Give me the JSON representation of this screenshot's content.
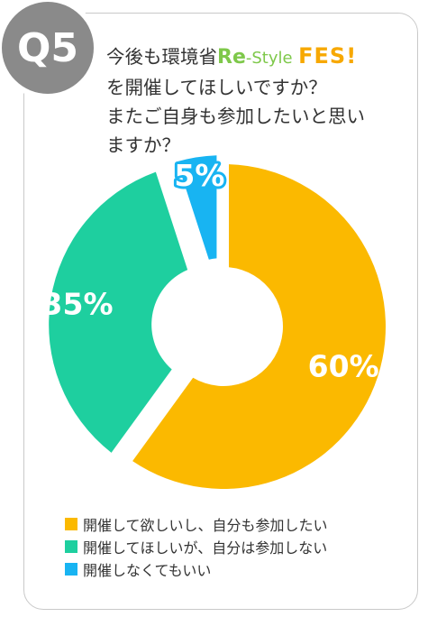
{
  "badge": "Q5",
  "question": {
    "line1_prefix": "今後も環境省",
    "logo_re": "Re",
    "logo_style": "-Style",
    "logo_fes": "FES!",
    "line2": "を開催してほしいですか？",
    "line3": "またご自身も参加したいと思い",
    "line4": "ますか？"
  },
  "colors": {
    "yellow": "#fbb900",
    "green": "#1ecf9f",
    "blue": "#18b4f2"
  },
  "chart_data": {
    "type": "pie",
    "donut": true,
    "labels": [
      "開催して欲しいし、自分も参加したい",
      "開催してほしいが、自分は参加しない",
      "開催しなくてもいい"
    ],
    "values": [
      60,
      35,
      5
    ],
    "data_labels": [
      "60%",
      "35%",
      "5%"
    ],
    "colors": [
      "#fbb900",
      "#1ecf9f",
      "#18b4f2"
    ],
    "legend_position": "bottom"
  }
}
